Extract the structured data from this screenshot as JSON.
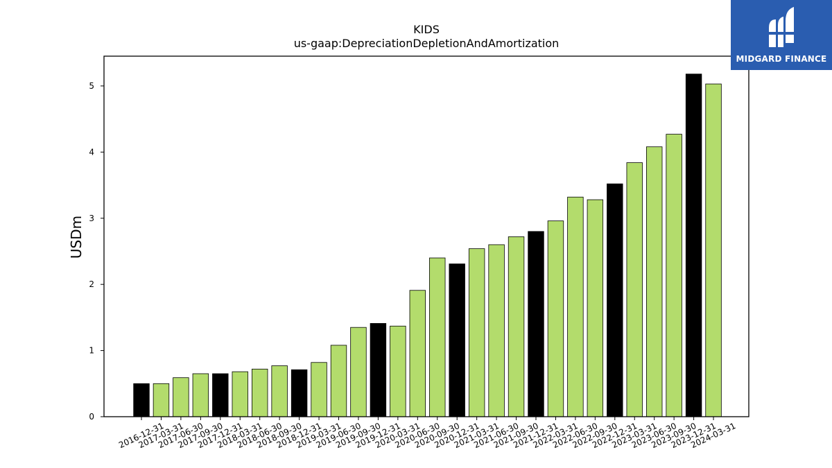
{
  "logo": {
    "text": "MIDGARD FINANCE",
    "background": "#2a5db0"
  },
  "colors": {
    "annual": "#000000",
    "quarterly": "#b3dc6c",
    "edge": "#000000"
  },
  "chart_data": {
    "type": "bar",
    "title": "KIDS",
    "subtitle": "us-gaap:DepreciationDepletionAndAmortization",
    "xlabel": "",
    "ylabel": "USDm",
    "ylim": [
      0,
      5.45
    ],
    "yticks": [
      0,
      1,
      2,
      3,
      4,
      5
    ],
    "grid": false,
    "categories": [
      "2016-12-31",
      "2017-03-31",
      "2017-06-30",
      "2017-09-30",
      "2017-12-31",
      "2018-03-31",
      "2018-06-30",
      "2018-09-30",
      "2018-12-31",
      "2019-03-31",
      "2019-06-30",
      "2019-09-30",
      "2019-12-31",
      "2020-03-31",
      "2020-06-30",
      "2020-09-30",
      "2020-12-31",
      "2021-03-31",
      "2021-06-30",
      "2021-09-30",
      "2021-12-31",
      "2022-03-31",
      "2022-06-30",
      "2022-09-30",
      "2022-12-31",
      "2023-03-31",
      "2023-06-30",
      "2023-09-30",
      "2023-12-31",
      "2024-03-31"
    ],
    "values": [
      0.5,
      0.5,
      0.59,
      0.65,
      0.65,
      0.68,
      0.72,
      0.77,
      0.71,
      0.82,
      1.08,
      1.35,
      1.41,
      1.37,
      1.91,
      2.4,
      2.31,
      2.54,
      2.6,
      2.72,
      2.8,
      2.96,
      3.32,
      3.28,
      3.52,
      3.84,
      4.08,
      4.27,
      5.18,
      5.03
    ],
    "annual": [
      true,
      false,
      false,
      false,
      true,
      false,
      false,
      false,
      true,
      false,
      false,
      false,
      true,
      false,
      false,
      false,
      true,
      false,
      false,
      false,
      true,
      false,
      false,
      false,
      true,
      false,
      false,
      false,
      true,
      false
    ]
  }
}
